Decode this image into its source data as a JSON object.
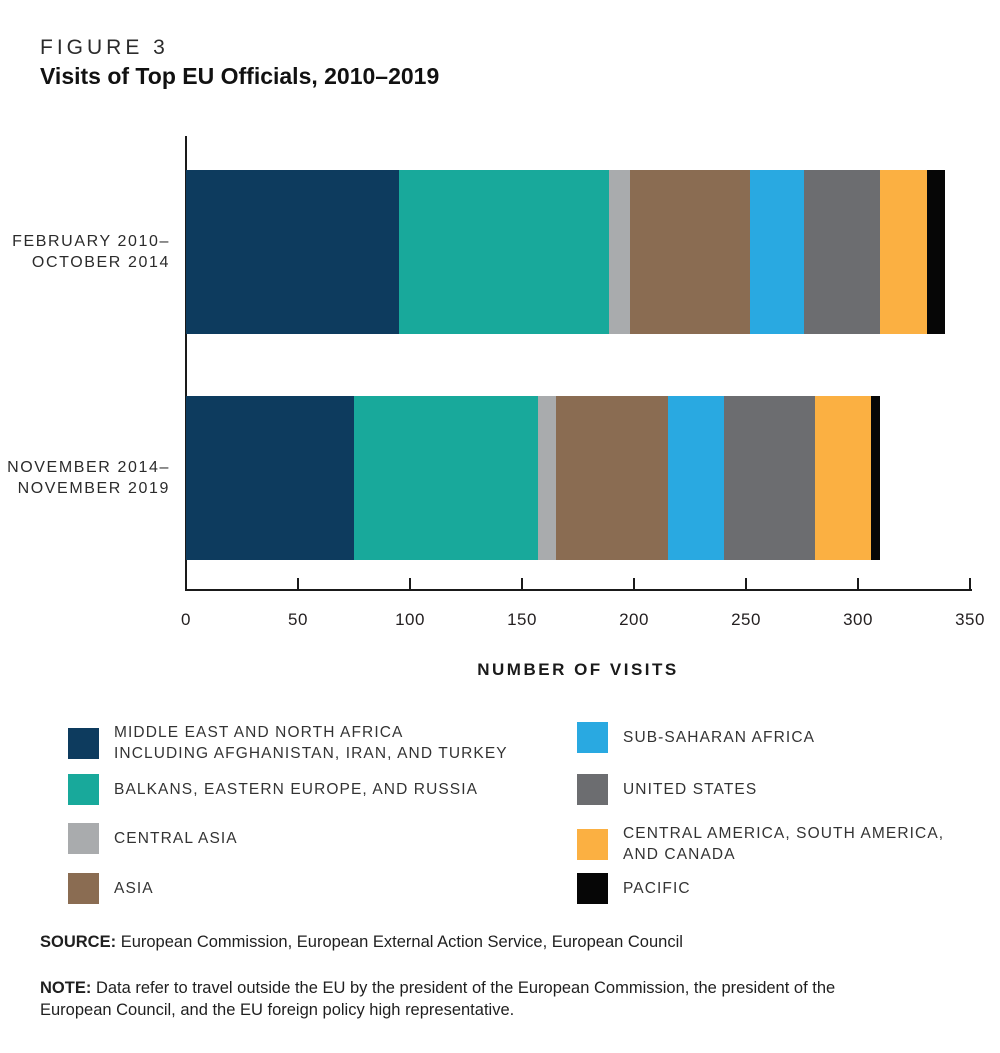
{
  "header": {
    "figure_label": "FIGURE 3",
    "title": "Visits of Top EU Officials, 2010–2019"
  },
  "chart_data": {
    "type": "bar",
    "orientation": "horizontal",
    "stacked": true,
    "title": "Visits of Top EU Officials, 2010–2019",
    "xlabel": "NUMBER OF VISITS",
    "ylabel": "",
    "xlim": [
      0,
      350
    ],
    "x_ticks": [
      0,
      50,
      100,
      150,
      200,
      250,
      300,
      350
    ],
    "grid": false,
    "legend_position": "below-two-columns",
    "segments": [
      {
        "key": "mena",
        "color": "#0d3b5e",
        "legend_lines": [
          "MIDDLE EAST AND NORTH AFRICA",
          "INCLUDING AFGHANISTAN, IRAN, AND TURKEY"
        ]
      },
      {
        "key": "balkans",
        "color": "#18a99b",
        "legend_lines": [
          "BALKANS, EASTERN EUROPE, AND RUSSIA"
        ]
      },
      {
        "key": "central_asia",
        "color": "#a9abad",
        "legend_lines": [
          "CENTRAL ASIA"
        ]
      },
      {
        "key": "asia",
        "color": "#8a6c52",
        "legend_lines": [
          "ASIA"
        ]
      },
      {
        "key": "subsaharan_africa",
        "color": "#29a9e1",
        "legend_lines": [
          "SUB-SAHARAN AFRICA"
        ]
      },
      {
        "key": "united_states",
        "color": "#6c6d70",
        "legend_lines": [
          "UNITED STATES"
        ]
      },
      {
        "key": "central_america",
        "color": "#fbb042",
        "legend_lines": [
          "CENTRAL AMERICA, SOUTH AMERICA,",
          "AND CANADA"
        ]
      },
      {
        "key": "pacific",
        "color": "#060606",
        "legend_lines": [
          "PACIFIC"
        ]
      }
    ],
    "rows": [
      {
        "label_lines": [
          "FEBRUARY 2010–",
          "OCTOBER 2014"
        ],
        "values": [
          95,
          94,
          9,
          54,
          24,
          34,
          21,
          8
        ],
        "total": 339
      },
      {
        "label_lines": [
          "NOVEMBER 2014–",
          "NOVEMBER 2019"
        ],
        "values": [
          75,
          82,
          8,
          50,
          25,
          41,
          25,
          4
        ],
        "total": 310
      }
    ]
  },
  "legend": {
    "columns": [
      [
        "mena",
        "balkans",
        "central_asia",
        "asia"
      ],
      [
        "subsaharan_africa",
        "united_states",
        "central_america",
        "pacific"
      ]
    ]
  },
  "footer": {
    "source_label": "SOURCE:",
    "source_text": "European Commission, European External Action Service, European Council",
    "note_label": "NOTE:",
    "note_text": "Data refer to travel outside the EU by the president of the European Commission, the president of the European Council, and the EU foreign policy high representative."
  }
}
